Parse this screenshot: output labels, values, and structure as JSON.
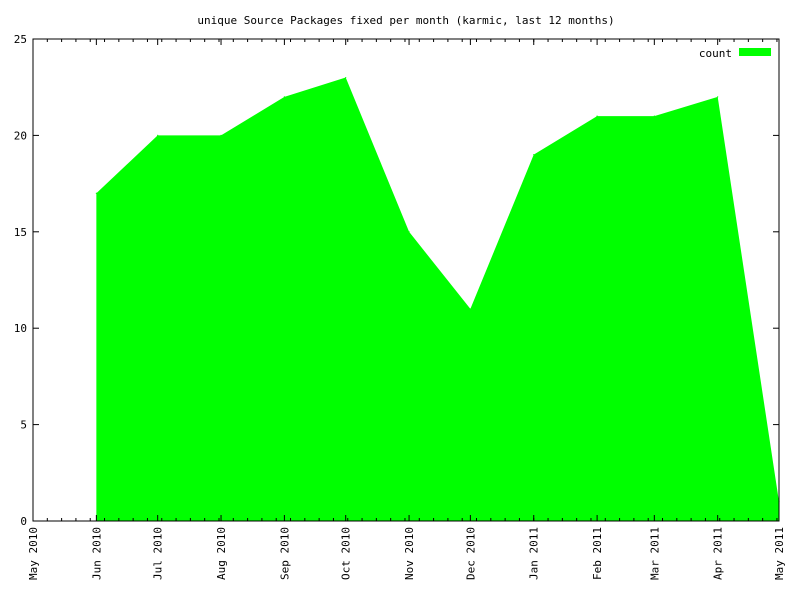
{
  "chart_data": {
    "type": "area",
    "title": "unique Source Packages fixed per month (karmic, last 12 months)",
    "xlabel": "",
    "ylabel": "",
    "x_ticks": [
      "May 2010",
      "Jun 2010",
      "Jul 2010",
      "Aug 2010",
      "Sep 2010",
      "Oct 2010",
      "Nov 2010",
      "Dec 2010",
      "Jan 2011",
      "Feb 2011",
      "Mar 2011",
      "Apr 2011",
      "May 2011"
    ],
    "x_range": [
      "2010-05-01",
      "2011-05-01"
    ],
    "ylim": [
      0,
      25
    ],
    "y_ticks": [
      "0",
      "5",
      "10",
      "15",
      "20",
      "25"
    ],
    "grid": false,
    "legend_position": "top-right",
    "series": [
      {
        "name": "count",
        "color": "#00ff00",
        "points": [
          {
            "x": "2010-06-01",
            "y": 17
          },
          {
            "x": "2010-07-01",
            "y": 20
          },
          {
            "x": "2010-08-01",
            "y": 20
          },
          {
            "x": "2010-09-01",
            "y": 22
          },
          {
            "x": "2010-10-01",
            "y": 23
          },
          {
            "x": "2010-11-01",
            "y": 15
          },
          {
            "x": "2010-12-01",
            "y": 11
          },
          {
            "x": "2011-01-01",
            "y": 19
          },
          {
            "x": "2011-02-01",
            "y": 21
          },
          {
            "x": "2011-03-01",
            "y": 21
          },
          {
            "x": "2011-04-01",
            "y": 22
          },
          {
            "x": "2011-05-01",
            "y": 1
          }
        ]
      }
    ]
  }
}
